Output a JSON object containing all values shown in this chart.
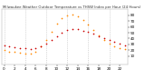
{
  "title": "Milwaukee Weather Outdoor Temperature vs THSW Index per Hour (24 Hours)",
  "hours": [
    0,
    1,
    2,
    3,
    4,
    5,
    6,
    7,
    8,
    9,
    10,
    11,
    12,
    13,
    14,
    15,
    16,
    17,
    18,
    19,
    20,
    21,
    22,
    23
  ],
  "temp": [
    28,
    26,
    25,
    24,
    23,
    22,
    23,
    26,
    32,
    38,
    44,
    50,
    55,
    57,
    56,
    54,
    52,
    49,
    44,
    40,
    37,
    34,
    31,
    29
  ],
  "thsw": [
    20,
    18,
    17,
    16,
    15,
    15,
    18,
    26,
    38,
    52,
    65,
    75,
    80,
    82,
    78,
    72,
    64,
    55,
    45,
    38,
    32,
    27,
    24,
    22
  ],
  "temp_color": "#cc0000",
  "thsw_color": "#ff8800",
  "bg_color": "#ffffff",
  "grid_color": "#bbbbbb",
  "ylim": [
    -5,
    90
  ],
  "yticks_right": [
    10,
    20,
    30,
    40,
    50,
    60,
    70,
    80
  ],
  "ytick_labels_right": [
    "10",
    "20",
    "30",
    "40",
    "50",
    "60",
    "70",
    "80"
  ],
  "xgrid_hours": [
    0,
    4,
    8,
    12,
    16,
    20
  ],
  "xticks": [
    0,
    2,
    4,
    6,
    8,
    10,
    12,
    14,
    16,
    18,
    20,
    22
  ],
  "xtick_labels": [
    "0",
    "2",
    "4",
    "6",
    "8",
    "10",
    "12",
    "14",
    "16",
    "18",
    "20",
    "22"
  ]
}
